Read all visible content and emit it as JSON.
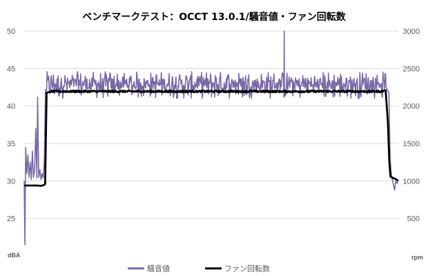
{
  "chart_data": {
    "type": "line",
    "title": "ベンチマークテスト：OCCT 13.0.1/騒音値・ファン回転数",
    "y_left": {
      "label": "dBA",
      "min": 20,
      "max": 50,
      "ticks": [
        50,
        45,
        40,
        35,
        30,
        25
      ]
    },
    "y_right": {
      "label": "rpm",
      "min": 0,
      "max": 3000,
      "ticks": [
        3000,
        2500,
        2000,
        1500,
        1000,
        500
      ]
    },
    "grid": true,
    "legend_position": "bottom",
    "x_range": [
      0,
      100
    ],
    "series": [
      {
        "name": "騒音値",
        "axis": "left",
        "color": "#7a68a6",
        "points": [
          [
            0,
            30
          ],
          [
            0.2,
            21.5
          ],
          [
            0.4,
            34.5
          ],
          [
            0.7,
            31
          ],
          [
            1.0,
            33.5
          ],
          [
            1.3,
            30.5
          ],
          [
            1.6,
            32.5
          ],
          [
            1.9,
            30.2
          ],
          [
            2.2,
            34
          ],
          [
            2.5,
            30.5
          ],
          [
            2.8,
            31.5
          ],
          [
            3.1,
            37
          ],
          [
            3.4,
            30.4
          ],
          [
            3.6,
            41.2
          ],
          [
            3.9,
            30.5
          ],
          [
            4.2,
            31.5
          ],
          [
            4.5,
            30.2
          ],
          [
            4.8,
            31
          ],
          [
            5.1,
            30.4
          ],
          [
            5.4,
            33
          ],
          [
            5.7,
            42.2
          ],
          [
            6,
            43.6
          ],
          [
            96.8,
            43.5
          ],
          [
            97.2,
            42
          ],
          [
            97.5,
            41.8
          ],
          [
            97.8,
            33
          ],
          [
            98.1,
            31
          ],
          [
            98.4,
            30.2
          ],
          [
            98.7,
            29.5
          ],
          [
            99,
            28.8
          ],
          [
            99.3,
            30
          ],
          [
            99.6,
            29.7
          ],
          [
            100,
            29.8
          ]
        ],
        "noise": {
          "from": 6,
          "to": 96.8,
          "center": 43.0,
          "low": 41.0,
          "high": 44.6
        },
        "spike": {
          "x": 69.5,
          "y": 50
        }
      },
      {
        "name": "ファン回転数",
        "axis": "right",
        "color": "#000000",
        "points": [
          [
            0,
            940
          ],
          [
            3.5,
            940
          ],
          [
            4.5,
            935
          ],
          [
            5.2,
            945
          ],
          [
            5.6,
            960
          ],
          [
            6,
            2180
          ],
          [
            7,
            2200
          ],
          [
            96,
            2200
          ],
          [
            96.6,
            2210
          ],
          [
            97.2,
            1800
          ],
          [
            97.6,
            1250
          ],
          [
            97.9,
            1060
          ],
          [
            98.6,
            1040
          ],
          [
            99.2,
            1030
          ],
          [
            99.7,
            1010
          ],
          [
            100,
            1000
          ]
        ],
        "noise": {
          "from": 7,
          "to": 96,
          "center": 2195,
          "amp": 12
        }
      }
    ]
  }
}
